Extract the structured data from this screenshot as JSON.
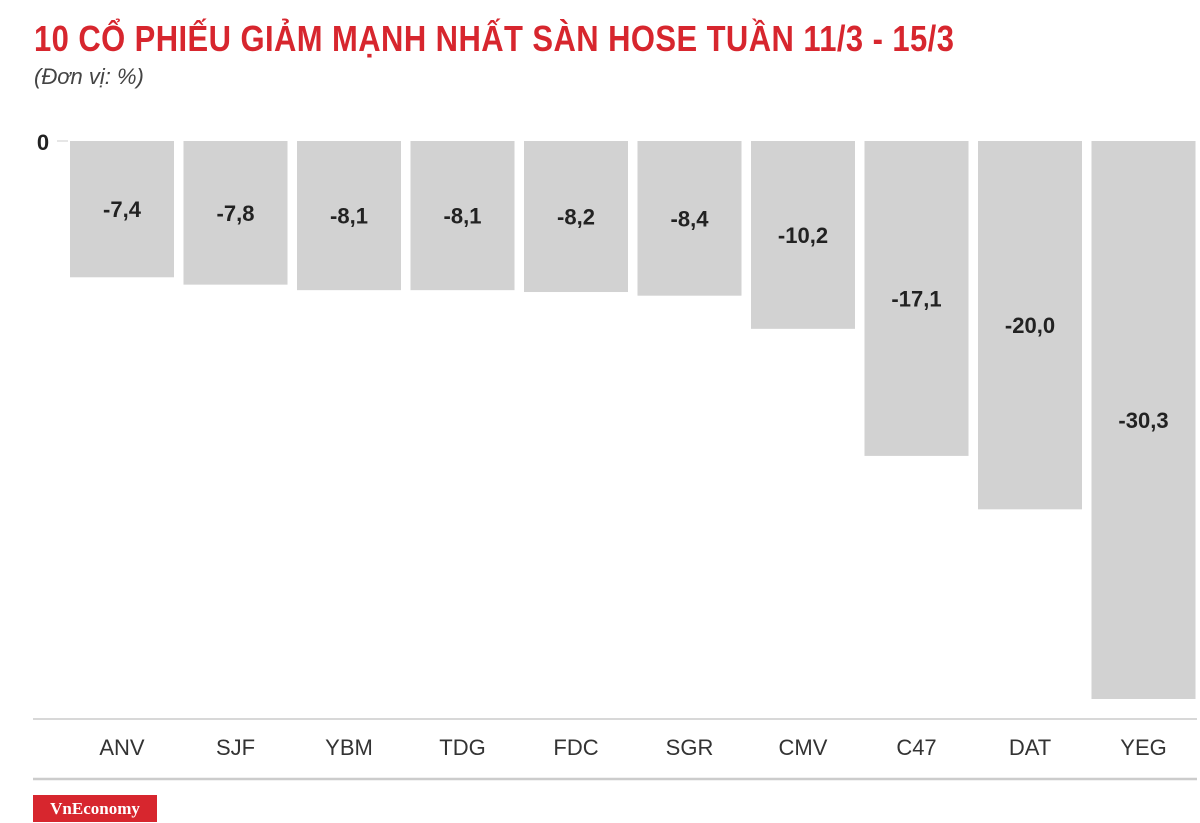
{
  "title": "10 CỔ PHIẾU GIẢM MẠNH NHẤT SÀN HOSE TUẦN 11/3 - 15/3",
  "unit_label": "(Đơn vị: %)",
  "brand": "VnEconomy",
  "colors": {
    "title": "#d7262e",
    "bar": "#d2d2d2",
    "brand_bg": "#d7262e",
    "axis_line": "#cccccc",
    "label_text": "#222222",
    "tick_text": "#333333"
  },
  "chart_data": {
    "type": "bar",
    "categories": [
      "ANV",
      "SJF",
      "YBM",
      "TDG",
      "FDC",
      "SGR",
      "CMV",
      "C47",
      "DAT",
      "YEG"
    ],
    "values": [
      -7.4,
      -7.8,
      -8.1,
      -8.1,
      -8.2,
      -8.4,
      -10.2,
      -17.1,
      -20.0,
      -30.3
    ],
    "value_labels": [
      "-7,4",
      "-7,8",
      "-8,1",
      "-8,1",
      "-8,2",
      "-8,4",
      "-10,2",
      "-17,1",
      "-20,0",
      "-30,3"
    ],
    "y_tick_labels": [
      "0"
    ],
    "ylim": [
      -31.3,
      0
    ],
    "grid": false,
    "legend": "none"
  }
}
